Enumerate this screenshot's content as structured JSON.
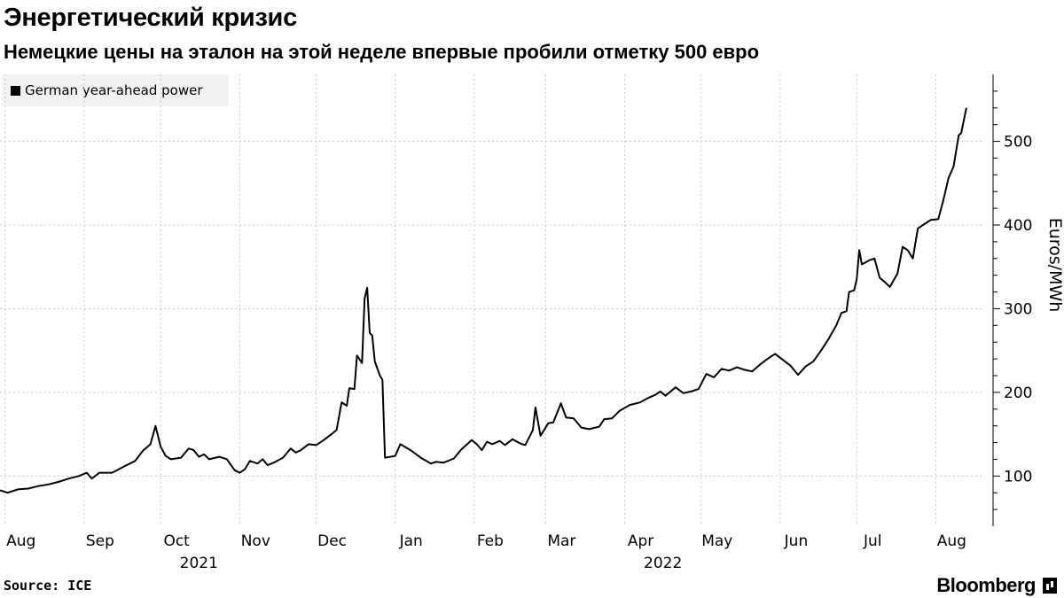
{
  "title": "Энергетический кризис",
  "subtitle": "Немецкие цены на эталон на этой неделе впервые пробили отметку 500 евро",
  "source": "Source: ICE",
  "brand": "Bloomberg",
  "chart_data": {
    "type": "line",
    "series": [
      {
        "name": "German year-ahead power",
        "color": "#000000",
        "points": [
          [
            "2021-07-30",
            83
          ],
          [
            "2021-08-02",
            80
          ],
          [
            "2021-08-06",
            84
          ],
          [
            "2021-08-10",
            85
          ],
          [
            "2021-08-14",
            88
          ],
          [
            "2021-08-18",
            90
          ],
          [
            "2021-08-22",
            93
          ],
          [
            "2021-08-26",
            97
          ],
          [
            "2021-08-30",
            100
          ],
          [
            "2021-09-02",
            104
          ],
          [
            "2021-09-04",
            97
          ],
          [
            "2021-09-07",
            104
          ],
          [
            "2021-09-12",
            104
          ],
          [
            "2021-09-17",
            112
          ],
          [
            "2021-09-21",
            118
          ],
          [
            "2021-09-24",
            130
          ],
          [
            "2021-09-27",
            138
          ],
          [
            "2021-09-29",
            160
          ],
          [
            "2021-10-01",
            135
          ],
          [
            "2021-10-03",
            124
          ],
          [
            "2021-10-05",
            120
          ],
          [
            "2021-10-09",
            122
          ],
          [
            "2021-10-12",
            133
          ],
          [
            "2021-10-14",
            131
          ],
          [
            "2021-10-16",
            123
          ],
          [
            "2021-10-18",
            126
          ],
          [
            "2021-10-20",
            120
          ],
          [
            "2021-10-24",
            123
          ],
          [
            "2021-10-27",
            120
          ],
          [
            "2021-10-30",
            107
          ],
          [
            "2021-11-01",
            104
          ],
          [
            "2021-11-03",
            108
          ],
          [
            "2021-11-05",
            118
          ],
          [
            "2021-11-08",
            115
          ],
          [
            "2021-11-10",
            120
          ],
          [
            "2021-11-12",
            113
          ],
          [
            "2021-11-15",
            117
          ],
          [
            "2021-11-18",
            122
          ],
          [
            "2021-11-21",
            133
          ],
          [
            "2021-11-23",
            128
          ],
          [
            "2021-11-25",
            131
          ],
          [
            "2021-11-28",
            138
          ],
          [
            "2021-12-01",
            137
          ],
          [
            "2021-12-04",
            143
          ],
          [
            "2021-12-07",
            150
          ],
          [
            "2021-12-09",
            155
          ],
          [
            "2021-12-11",
            188
          ],
          [
            "2021-12-13",
            184
          ],
          [
            "2021-12-14",
            205
          ],
          [
            "2021-12-16",
            204
          ],
          [
            "2021-12-17",
            244
          ],
          [
            "2021-12-19",
            235
          ],
          [
            "2021-12-20",
            312
          ],
          [
            "2021-12-21",
            325
          ],
          [
            "2021-12-22",
            271
          ],
          [
            "2021-12-23",
            268
          ],
          [
            "2021-12-24",
            237
          ],
          [
            "2021-12-26",
            220
          ],
          [
            "2021-12-27",
            215
          ],
          [
            "2021-12-28",
            122
          ],
          [
            "2022-01-01",
            124
          ],
          [
            "2022-01-03",
            138
          ],
          [
            "2022-01-07",
            131
          ],
          [
            "2022-01-11",
            122
          ],
          [
            "2022-01-15",
            115
          ],
          [
            "2022-01-17",
            117
          ],
          [
            "2022-01-20",
            116
          ],
          [
            "2022-01-24",
            121
          ],
          [
            "2022-01-27",
            132
          ],
          [
            "2022-01-31",
            143
          ],
          [
            "2022-02-02",
            138
          ],
          [
            "2022-02-04",
            131
          ],
          [
            "2022-02-06",
            141
          ],
          [
            "2022-02-08",
            138
          ],
          [
            "2022-02-11",
            142
          ],
          [
            "2022-02-13",
            137
          ],
          [
            "2022-02-16",
            144
          ],
          [
            "2022-02-19",
            139
          ],
          [
            "2022-02-21",
            137
          ],
          [
            "2022-02-24",
            155
          ],
          [
            "2022-02-25",
            182
          ],
          [
            "2022-02-27",
            148
          ],
          [
            "2022-03-02",
            163
          ],
          [
            "2022-03-04",
            164
          ],
          [
            "2022-03-07",
            187
          ],
          [
            "2022-03-09",
            170
          ],
          [
            "2022-03-12",
            169
          ],
          [
            "2022-03-15",
            158
          ],
          [
            "2022-03-18",
            156
          ],
          [
            "2022-03-22",
            159
          ],
          [
            "2022-03-24",
            168
          ],
          [
            "2022-03-27",
            169
          ],
          [
            "2022-03-30",
            178
          ],
          [
            "2022-04-03",
            185
          ],
          [
            "2022-04-07",
            188
          ],
          [
            "2022-04-10",
            193
          ],
          [
            "2022-04-13",
            197
          ],
          [
            "2022-04-15",
            201
          ],
          [
            "2022-04-17",
            196
          ],
          [
            "2022-04-21",
            206
          ],
          [
            "2022-04-24",
            199
          ],
          [
            "2022-04-27",
            201
          ],
          [
            "2022-04-30",
            204
          ],
          [
            "2022-05-03",
            222
          ],
          [
            "2022-05-06",
            218
          ],
          [
            "2022-05-09",
            228
          ],
          [
            "2022-05-12",
            226
          ],
          [
            "2022-05-15",
            230
          ],
          [
            "2022-05-18",
            227
          ],
          [
            "2022-05-21",
            225
          ],
          [
            "2022-05-24",
            233
          ],
          [
            "2022-05-27",
            240
          ],
          [
            "2022-05-30",
            246
          ],
          [
            "2022-06-02",
            239
          ],
          [
            "2022-06-05",
            232
          ],
          [
            "2022-06-08",
            221
          ],
          [
            "2022-06-11",
            231
          ],
          [
            "2022-06-14",
            237
          ],
          [
            "2022-06-17",
            250
          ],
          [
            "2022-06-20",
            264
          ],
          [
            "2022-06-23",
            280
          ],
          [
            "2022-06-25",
            295
          ],
          [
            "2022-06-27",
            297
          ],
          [
            "2022-06-28",
            320
          ],
          [
            "2022-06-30",
            322
          ],
          [
            "2022-07-01",
            335
          ],
          [
            "2022-07-02",
            370
          ],
          [
            "2022-07-03",
            353
          ],
          [
            "2022-07-06",
            358
          ],
          [
            "2022-07-08",
            360
          ],
          [
            "2022-07-10",
            337
          ],
          [
            "2022-07-12",
            332
          ],
          [
            "2022-07-14",
            326
          ],
          [
            "2022-07-17",
            342
          ],
          [
            "2022-07-19",
            374
          ],
          [
            "2022-07-21",
            370
          ],
          [
            "2022-07-23",
            360
          ],
          [
            "2022-07-25",
            396
          ],
          [
            "2022-07-27",
            400
          ],
          [
            "2022-07-30",
            406
          ],
          [
            "2022-08-02",
            407
          ],
          [
            "2022-08-04",
            430
          ],
          [
            "2022-08-06",
            456
          ],
          [
            "2022-08-08",
            470
          ],
          [
            "2022-08-10",
            507
          ],
          [
            "2022-08-11",
            510
          ],
          [
            "2022-08-13",
            540
          ]
        ]
      }
    ],
    "x_axis": {
      "type": "date",
      "range": [
        "2021-07-30",
        "2022-08-20"
      ],
      "tick_labels": [
        {
          "label": "Aug",
          "date": "2021-08-01"
        },
        {
          "label": "Sep",
          "date": "2021-09-01"
        },
        {
          "label": "Oct",
          "date": "2021-10-01"
        },
        {
          "label": "Nov",
          "date": "2021-11-01"
        },
        {
          "label": "Dec",
          "date": "2021-12-01"
        },
        {
          "label": "Jan",
          "date": "2022-01-01"
        },
        {
          "label": "Feb",
          "date": "2022-02-01"
        },
        {
          "label": "Mar",
          "date": "2022-03-01"
        },
        {
          "label": "Apr",
          "date": "2022-04-01"
        },
        {
          "label": "May",
          "date": "2022-05-01"
        },
        {
          "label": "Jun",
          "date": "2022-06-01"
        },
        {
          "label": "Jul",
          "date": "2022-07-01"
        },
        {
          "label": "Aug",
          "date": "2022-08-01"
        }
      ],
      "year_labels": [
        {
          "label": "2021",
          "date": "2021-10-16"
        },
        {
          "label": "2022",
          "date": "2022-04-16"
        }
      ]
    },
    "y_axis": {
      "label": "Euros/MWh",
      "position": "right",
      "range": [
        40,
        580
      ],
      "ticks": [
        100,
        200,
        300,
        400,
        500
      ]
    },
    "grid": true,
    "legend_position": "top-left"
  }
}
